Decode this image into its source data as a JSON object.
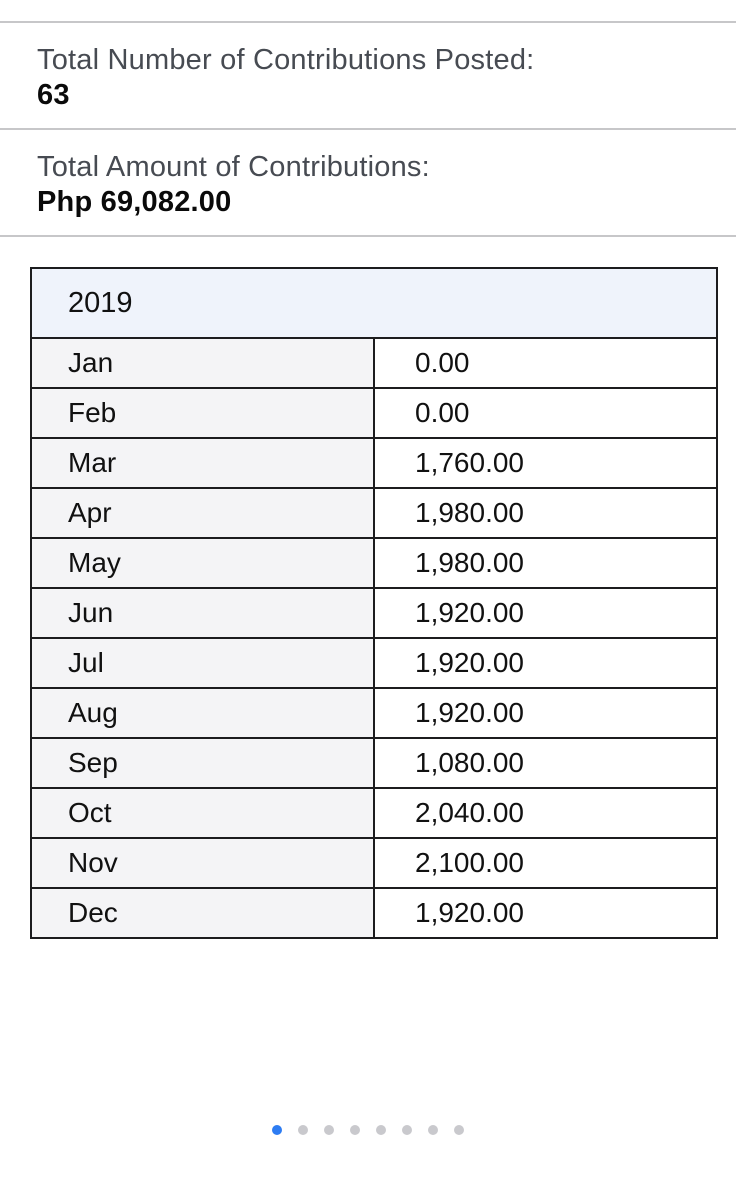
{
  "summary": {
    "posted_label": "Total Number of Contributions Posted:",
    "posted_value": "63",
    "amount_label": "Total Amount of Contributions:",
    "amount_value": "Php 69,082.00"
  },
  "table": {
    "year": "2019",
    "columns": [
      "month",
      "amount"
    ],
    "rows": [
      {
        "month": "Jan",
        "amount": "0.00"
      },
      {
        "month": "Feb",
        "amount": "0.00"
      },
      {
        "month": "Mar",
        "amount": "1,760.00"
      },
      {
        "month": "Apr",
        "amount": "1,980.00"
      },
      {
        "month": "May",
        "amount": "1,980.00"
      },
      {
        "month": "Jun",
        "amount": "1,920.00"
      },
      {
        "month": "Jul",
        "amount": "1,920.00"
      },
      {
        "month": "Aug",
        "amount": "1,920.00"
      },
      {
        "month": "Sep",
        "amount": "1,080.00"
      },
      {
        "month": "Oct",
        "amount": "2,040.00"
      },
      {
        "month": "Nov",
        "amount": "2,100.00"
      },
      {
        "month": "Dec",
        "amount": "1,920.00"
      }
    ]
  },
  "pager": {
    "dot_count": 8,
    "active_index": 0
  },
  "colors": {
    "active_dot": "#2d7cf2",
    "inactive_dot": "#c9c9cd",
    "header_bg": "#eff3fb",
    "month_cell_bg": "#f4f4f6",
    "table_border": "#1c1c1e",
    "divider": "#c7c7c9",
    "label_text": "#474b52",
    "value_text": "#0a0a0a"
  }
}
